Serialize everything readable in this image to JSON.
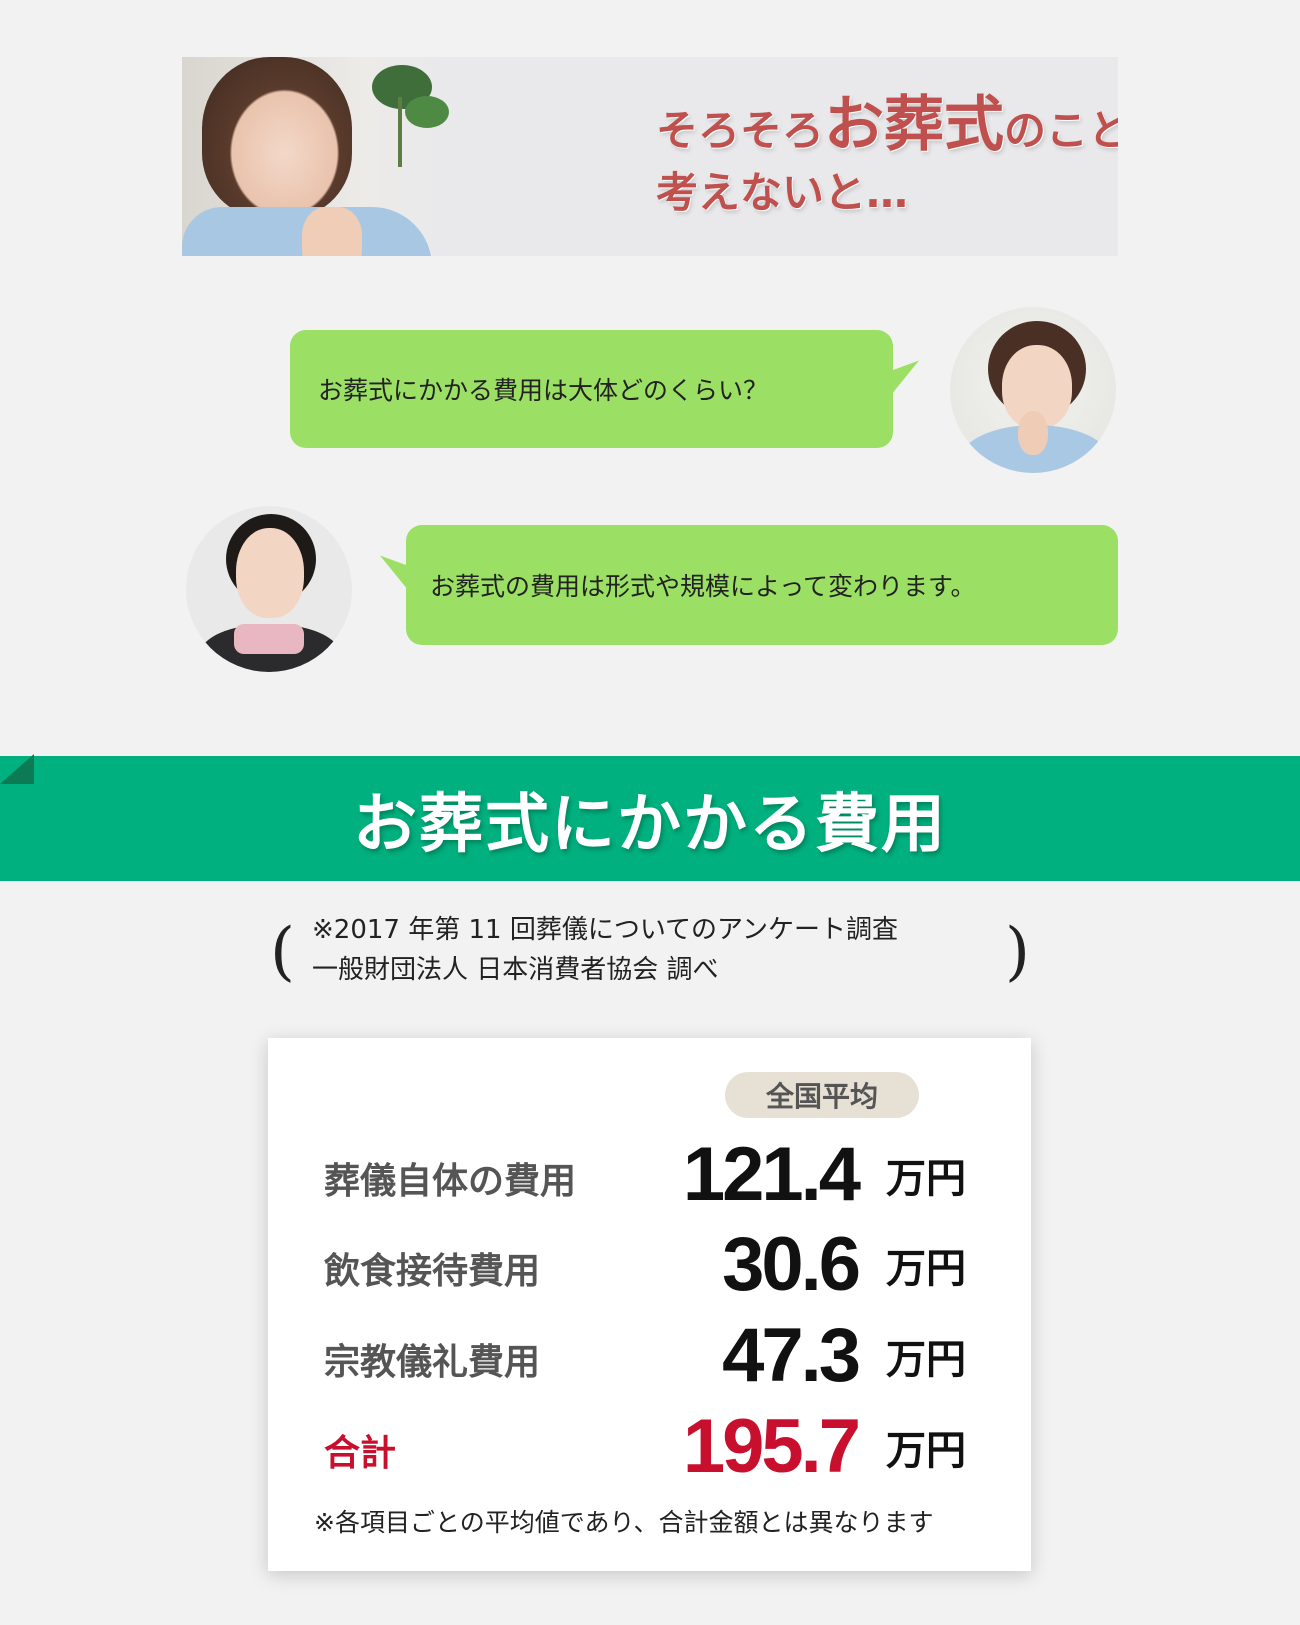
{
  "hero": {
    "line1_pre": "そろそろ",
    "line1_emph": "お葬式",
    "line1_post": "のことを",
    "line2": "考えないと…"
  },
  "chat": {
    "question": "お葬式にかかる費用は大体どのくらい？",
    "answer": "お葬式の費用は形式や規模によって変わります。"
  },
  "section": {
    "title": "お葬式にかかる費用"
  },
  "source": {
    "open_paren": "(",
    "close_paren": ")",
    "line1": "※2017 年第 11 回葬儀についてのアンケート調査",
    "line2": "一般財団法人 日本消費者協会 調べ"
  },
  "costs": {
    "column_header": "全国平均",
    "rows": [
      {
        "label": "葬儀自体の費用",
        "value": "121.4",
        "unit": "万円"
      },
      {
        "label": "飲食接待費用",
        "value": "30.6",
        "unit": "万円"
      },
      {
        "label": "宗教儀礼費用",
        "value": "47.3",
        "unit": "万円"
      },
      {
        "label": "合計",
        "value": "195.7",
        "unit": "万円"
      }
    ],
    "footnote": "※各項目ごとの平均値であり、合計金額とは異なります"
  },
  "colors": {
    "accent_green": "#00b07e",
    "bubble_green": "#9be064",
    "hero_red": "#c0504d",
    "total_red": "#c8102e"
  }
}
